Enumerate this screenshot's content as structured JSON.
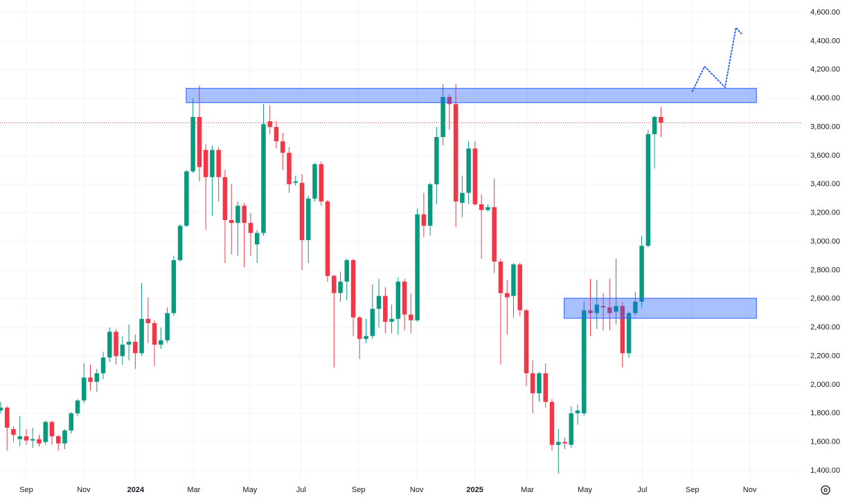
{
  "chart_data": {
    "type": "candlestick",
    "open": [
      1820,
      1840,
      1690,
      1620,
      1640,
      1610,
      1620,
      1600,
      1740,
      1640,
      1590,
      1680,
      1800,
      1890,
      2050,
      2020,
      2080,
      2190,
      2370,
      2200,
      2280,
      2300,
      2220,
      2460,
      2430,
      2280,
      2310,
      2500,
      2870,
      3110,
      3490,
      3870,
      3640,
      3450,
      3640,
      3450,
      3150,
      3130,
      3250,
      3130,
      2980,
      3060,
      3840,
      3800,
      3700,
      3620,
      3410,
      3410,
      3010,
      3300,
      3540,
      3280,
      2760,
      2640,
      2720,
      2870,
      2470,
      2320,
      2340,
      2530,
      2620,
      2440,
      2460,
      2720,
      2490,
      2450,
      3190,
      3110,
      3400,
      3730,
      4010,
      3960,
      3270,
      3340,
      3650,
      3260,
      3220,
      3240,
      2860,
      2640,
      2620,
      2840,
      2520,
      2080,
      1940,
      2080,
      1880,
      1580,
      1600,
      1580,
      1800,
      1800,
      2520,
      2500,
      2550,
      2540,
      2510,
      2550,
      2220,
      2500,
      2580,
      2970,
      3750,
      3870
    ],
    "high": [
      1880,
      1850,
      1710,
      1780,
      1690,
      1700,
      1650,
      1750,
      1750,
      1650,
      1690,
      1810,
      1900,
      2150,
      2140,
      2110,
      2230,
      2400,
      2390,
      2340,
      2420,
      2350,
      2710,
      2610,
      2450,
      2400,
      2540,
      2900,
      3120,
      3500,
      4000,
      4090,
      3680,
      3670,
      3660,
      3500,
      3400,
      3280,
      3270,
      3200,
      3080,
      3960,
      3950,
      3840,
      3760,
      3660,
      3460,
      3470,
      3320,
      3550,
      3560,
      3290,
      2770,
      2790,
      2880,
      2880,
      2480,
      2460,
      2700,
      2740,
      2680,
      2560,
      2750,
      2740,
      2640,
      3230,
      3340,
      3410,
      3800,
      4100,
      4030,
      4100,
      3460,
      3700,
      3700,
      3330,
      3260,
      3440,
      2880,
      2730,
      2850,
      2850,
      2530,
      2170,
      2090,
      2150,
      1900,
      1690,
      1630,
      1850,
      1860,
      2580,
      2740,
      2730,
      2640,
      2740,
      2880,
      2580,
      2510,
      2650,
      3040,
      3780,
      3880,
      3940
    ],
    "low": [
      1800,
      1540,
      1600,
      1570,
      1580,
      1560,
      1570,
      1580,
      1580,
      1540,
      1550,
      1660,
      1780,
      1870,
      1960,
      1950,
      2040,
      2160,
      2140,
      2140,
      2170,
      2110,
      2200,
      2290,
      2130,
      2250,
      2290,
      2480,
      2860,
      3100,
      3480,
      3420,
      3080,
      3180,
      3280,
      2850,
      2910,
      2900,
      2820,
      2900,
      2850,
      3040,
      3750,
      3650,
      3500,
      3340,
      3390,
      2800,
      2850,
      3280,
      3250,
      2720,
      2120,
      2580,
      2590,
      2340,
      2180,
      2290,
      2320,
      2400,
      2360,
      2360,
      2350,
      2380,
      2360,
      2440,
      3030,
      3040,
      3260,
      3670,
      3780,
      3100,
      3170,
      3260,
      3250,
      2880,
      3210,
      2780,
      2140,
      2350,
      2470,
      2480,
      1990,
      1800,
      1880,
      1840,
      1540,
      1380,
      1550,
      1560,
      1720,
      1780,
      2340,
      2390,
      2380,
      2380,
      2420,
      2120,
      2190,
      2480,
      2540,
      2960,
      3510,
      3730
    ],
    "close": [
      1840,
      1700,
      1650,
      1640,
      1610,
      1620,
      1590,
      1740,
      1640,
      1590,
      1680,
      1800,
      1890,
      2050,
      2020,
      2080,
      2190,
      2370,
      2200,
      2280,
      2300,
      2220,
      2460,
      2430,
      2280,
      2310,
      2500,
      2870,
      3110,
      3490,
      3870,
      3520,
      3450,
      3640,
      3450,
      3150,
      3130,
      3250,
      3130,
      3060,
      3060,
      3820,
      3800,
      3700,
      3620,
      3400,
      3420,
      3010,
      3300,
      3540,
      3280,
      2760,
      2640,
      2720,
      2870,
      2470,
      2320,
      2340,
      2530,
      2620,
      2440,
      2460,
      2720,
      2490,
      2450,
      3190,
      3110,
      3400,
      3730,
      4010,
      3960,
      3280,
      3340,
      3650,
      3260,
      3220,
      3240,
      2860,
      2640,
      2610,
      2840,
      2520,
      2080,
      1940,
      2080,
      1880,
      1580,
      1600,
      1590,
      1800,
      1820,
      2520,
      2500,
      2560,
      2540,
      2500,
      2550,
      2220,
      2500,
      2580,
      2970,
      3750,
      3870,
      3830
    ],
    "up_color": "#089981",
    "down_color": "#f23645",
    "xlim": [
      -0.1,
      125
    ],
    "xticks": [
      {
        "value": 4.0,
        "label": "Sep"
      },
      {
        "value": 12.96,
        "label": "Nov"
      },
      {
        "value": 21.06,
        "label": "2024"
      },
      {
        "value": 30.13,
        "label": "Mar"
      },
      {
        "value": 38.88,
        "label": "May"
      },
      {
        "value": 46.87,
        "label": "Jul"
      },
      {
        "value": 55.83,
        "label": "Sep"
      },
      {
        "value": 64.9,
        "label": "Nov"
      },
      {
        "value": 73.97,
        "label": "2025"
      },
      {
        "value": 82.18,
        "label": "Mar"
      },
      {
        "value": 91.14,
        "label": "May"
      },
      {
        "value": 100.1,
        "label": "Jul"
      },
      {
        "value": 107.9,
        "label": "Sep"
      },
      {
        "value": 116.85,
        "label": "Nov"
      }
    ],
    "ylim": [
      1342,
      4687
    ],
    "yticks": [
      {
        "value": 1400,
        "label": "1,400.00"
      },
      {
        "value": 1600,
        "label": "1,600.00"
      },
      {
        "value": 1800,
        "label": "1,800.00"
      },
      {
        "value": 2000,
        "label": "2,000.00"
      },
      {
        "value": 2200,
        "label": "2,200.00"
      },
      {
        "value": 2400,
        "label": "2,400.00"
      },
      {
        "value": 2600,
        "label": "2,600.00"
      },
      {
        "value": 2800,
        "label": "2,800.00"
      },
      {
        "value": 3000,
        "label": "3,000.00"
      },
      {
        "value": 3200,
        "label": "3,200.00"
      },
      {
        "value": 3400,
        "label": "3,400.00"
      },
      {
        "value": 3600,
        "label": "3,600.00"
      },
      {
        "value": 3800,
        "label": "3,800.00"
      },
      {
        "value": 4000,
        "label": "4,000.00"
      },
      {
        "value": 4200,
        "label": "4,200.00"
      },
      {
        "value": 4400,
        "label": "4,400.00"
      },
      {
        "value": 4600,
        "label": "4,600.00"
      }
    ],
    "grid": true,
    "zones": [
      {
        "x": [
          28.94,
          117.9
        ],
        "y": [
          3970,
          4070
        ],
        "color": "#2962ff"
      },
      {
        "x": [
          87.9,
          117.9
        ],
        "y": [
          2464,
          2604
        ],
        "color": "#2962ff"
      }
    ],
    "projection": {
      "x": [
        107.9,
        109.8,
        113.0,
        114.7,
        115.7
      ],
      "y": [
        4049,
        4223,
        4078,
        4494,
        4445
      ],
      "color": "#2962ff"
    }
  }
}
